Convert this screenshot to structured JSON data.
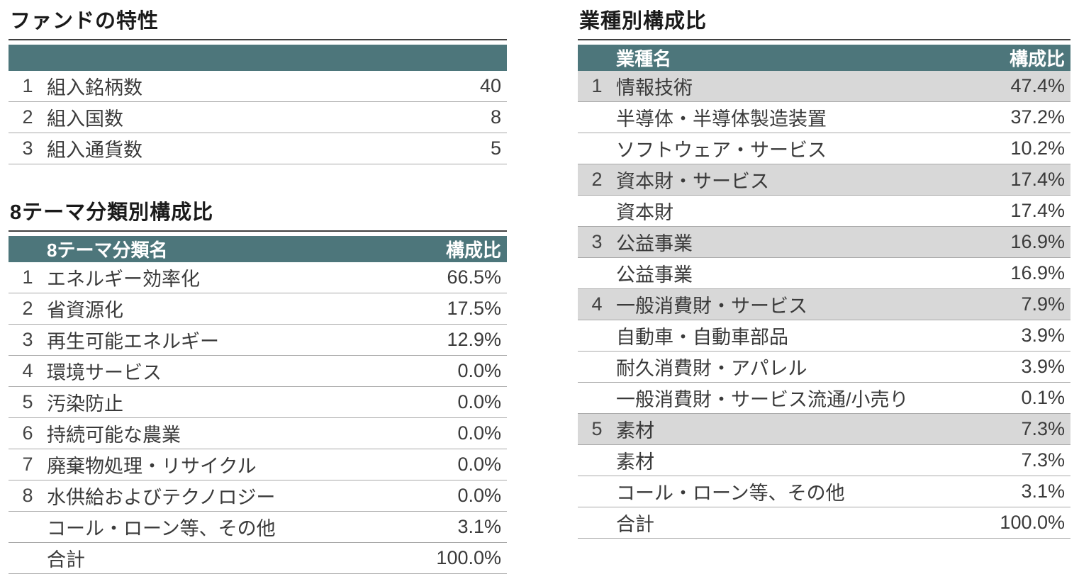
{
  "colors": {
    "header_bg": "#4d767b",
    "header_text": "#ffffff",
    "highlight_row_bg": "#d8d8d8",
    "row_border": "#a9a9a9",
    "title_rule": "#3f3f3f"
  },
  "fund": {
    "title": "ファンドの特性",
    "rows": [
      {
        "no": "1",
        "label": "組入銘柄数",
        "value": "40"
      },
      {
        "no": "2",
        "label": "組入国数",
        "value": "8"
      },
      {
        "no": "3",
        "label": "組入通貨数",
        "value": "5"
      }
    ]
  },
  "themes": {
    "title": "8テーマ分類別構成比",
    "col_name": "8テーマ分類名",
    "col_value": "構成比",
    "rows": [
      {
        "no": "1",
        "label": "エネルギー効率化",
        "value": "66.5%"
      },
      {
        "no": "2",
        "label": "省資源化",
        "value": "17.5%"
      },
      {
        "no": "3",
        "label": "再生可能エネルギー",
        "value": "12.9%"
      },
      {
        "no": "4",
        "label": "環境サービス",
        "value": "0.0%"
      },
      {
        "no": "5",
        "label": "汚染防止",
        "value": "0.0%"
      },
      {
        "no": "6",
        "label": "持続可能な農業",
        "value": "0.0%"
      },
      {
        "no": "7",
        "label": "廃棄物処理・リサイクル",
        "value": "0.0%"
      },
      {
        "no": "8",
        "label": "水供給およびテクノロジー",
        "value": "0.0%"
      },
      {
        "no": "",
        "label": "コール・ローン等、その他",
        "value": "3.1%"
      },
      {
        "no": "",
        "label": "合計",
        "value": "100.0%"
      }
    ]
  },
  "sectors": {
    "title": "業種別構成比",
    "col_name": "業種名",
    "col_value": "構成比",
    "rows": [
      {
        "no": "1",
        "label": "情報技術",
        "value": "47.4%",
        "highlight": true
      },
      {
        "no": "",
        "label": "半導体・半導体製造装置",
        "value": "37.2%"
      },
      {
        "no": "",
        "label": "ソフトウェア・サービス",
        "value": "10.2%"
      },
      {
        "no": "2",
        "label": "資本財・サービス",
        "value": "17.4%",
        "highlight": true
      },
      {
        "no": "",
        "label": "資本財",
        "value": "17.4%"
      },
      {
        "no": "3",
        "label": "公益事業",
        "value": "16.9%",
        "highlight": true
      },
      {
        "no": "",
        "label": "公益事業",
        "value": "16.9%"
      },
      {
        "no": "4",
        "label": "一般消費財・サービス",
        "value": "7.9%",
        "highlight": true
      },
      {
        "no": "",
        "label": "自動車・自動車部品",
        "value": "3.9%"
      },
      {
        "no": "",
        "label": "耐久消費財・アパレル",
        "value": "3.9%"
      },
      {
        "no": "",
        "label": "一般消費財・サービス流通/小売り",
        "value": "0.1%"
      },
      {
        "no": "5",
        "label": "素材",
        "value": "7.3%",
        "highlight": true
      },
      {
        "no": "",
        "label": "素材",
        "value": "7.3%"
      },
      {
        "no": "",
        "label": "コール・ローン等、その他",
        "value": "3.1%"
      },
      {
        "no": "",
        "label": "合計",
        "value": "100.0%"
      }
    ]
  }
}
